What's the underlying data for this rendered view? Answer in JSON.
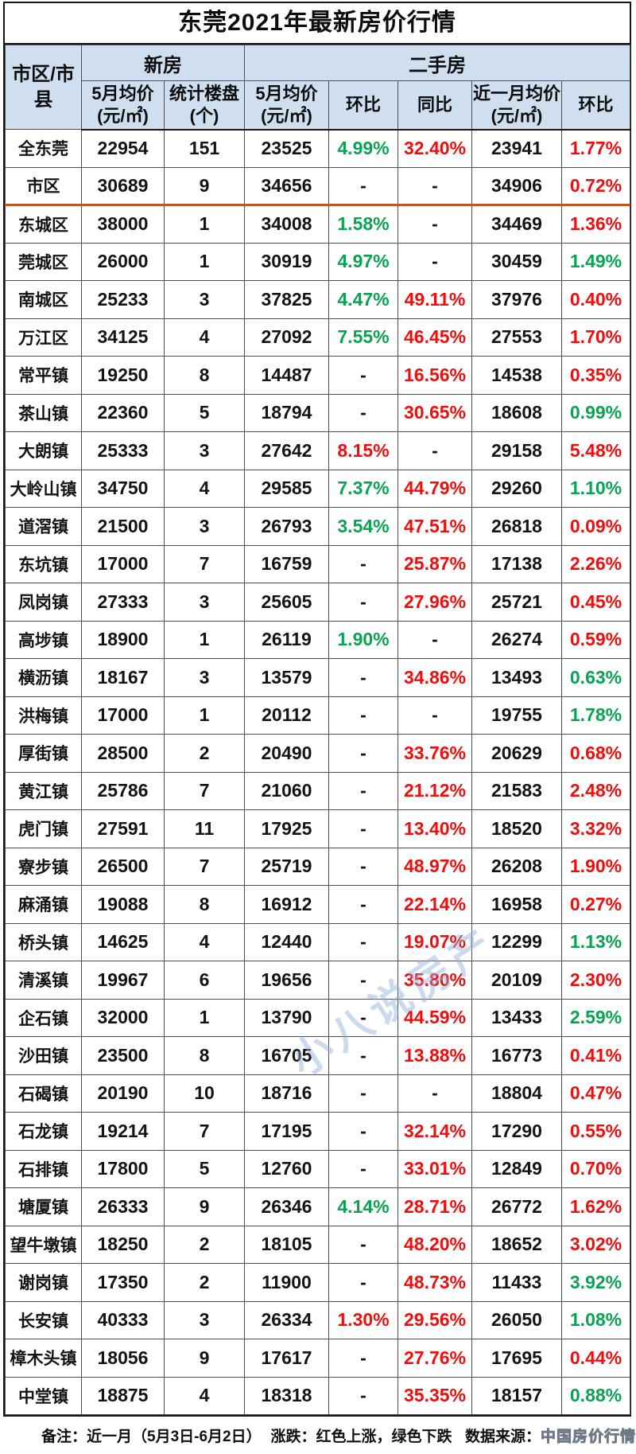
{
  "title": "东莞2021年最新房价行情",
  "colors": {
    "up_red": "#f20d0d",
    "down_green": "#09a352",
    "header_bg": "#cfdfef",
    "divider_orange": "#c3581f"
  },
  "table": {
    "corner_header": "市区/市县",
    "group_headers": [
      {
        "label": "新房",
        "colspan": 2
      },
      {
        "label": "二手房",
        "colspan": 5
      }
    ],
    "sub_headers": [
      "5月均价(元/㎡)",
      "统计楼盘(个)",
      "5月均价(元/㎡)",
      "环比",
      "同比",
      "近一月均价(元/㎡)",
      "环比"
    ],
    "divider_after_row_index": 1,
    "rows": [
      {
        "region": "全东莞",
        "new_avg": "22954",
        "listings": "151",
        "used_avg": "23525",
        "used_mom": "4.99%",
        "used_mom_color": "green",
        "used_yoy": "32.40%",
        "used_yoy_color": "red",
        "recent_avg": "23941",
        "recent_mom": "1.77%",
        "recent_mom_color": "red"
      },
      {
        "region": "市区",
        "new_avg": "30689",
        "listings": "9",
        "used_avg": "34656",
        "used_mom": "-",
        "used_mom_color": "",
        "used_yoy": "-",
        "used_yoy_color": "",
        "recent_avg": "34906",
        "recent_mom": "0.72%",
        "recent_mom_color": "red"
      },
      {
        "region": "东城区",
        "new_avg": "38000",
        "listings": "1",
        "used_avg": "34008",
        "used_mom": "1.58%",
        "used_mom_color": "green",
        "used_yoy": "-",
        "used_yoy_color": "",
        "recent_avg": "34469",
        "recent_mom": "1.36%",
        "recent_mom_color": "red"
      },
      {
        "region": "莞城区",
        "new_avg": "26000",
        "listings": "1",
        "used_avg": "30919",
        "used_mom": "4.97%",
        "used_mom_color": "green",
        "used_yoy": "-",
        "used_yoy_color": "",
        "recent_avg": "30459",
        "recent_mom": "1.49%",
        "recent_mom_color": "green"
      },
      {
        "region": "南城区",
        "new_avg": "25233",
        "listings": "3",
        "used_avg": "37825",
        "used_mom": "4.47%",
        "used_mom_color": "green",
        "used_yoy": "49.11%",
        "used_yoy_color": "red",
        "recent_avg": "37976",
        "recent_mom": "0.40%",
        "recent_mom_color": "red"
      },
      {
        "region": "万江区",
        "new_avg": "34125",
        "listings": "4",
        "used_avg": "27092",
        "used_mom": "7.55%",
        "used_mom_color": "green",
        "used_yoy": "46.45%",
        "used_yoy_color": "red",
        "recent_avg": "27553",
        "recent_mom": "1.70%",
        "recent_mom_color": "red"
      },
      {
        "region": "常平镇",
        "new_avg": "19250",
        "listings": "8",
        "used_avg": "14487",
        "used_mom": "-",
        "used_mom_color": "",
        "used_yoy": "16.56%",
        "used_yoy_color": "red",
        "recent_avg": "14538",
        "recent_mom": "0.35%",
        "recent_mom_color": "red"
      },
      {
        "region": "茶山镇",
        "new_avg": "22360",
        "listings": "5",
        "used_avg": "18794",
        "used_mom": "-",
        "used_mom_color": "",
        "used_yoy": "30.65%",
        "used_yoy_color": "red",
        "recent_avg": "18608",
        "recent_mom": "0.99%",
        "recent_mom_color": "green"
      },
      {
        "region": "大朗镇",
        "new_avg": "25333",
        "listings": "3",
        "used_avg": "27642",
        "used_mom": "8.15%",
        "used_mom_color": "red",
        "used_yoy": "-",
        "used_yoy_color": "",
        "recent_avg": "29158",
        "recent_mom": "5.48%",
        "recent_mom_color": "red"
      },
      {
        "region": "大岭山镇",
        "new_avg": "34750",
        "listings": "4",
        "used_avg": "29585",
        "used_mom": "7.37%",
        "used_mom_color": "green",
        "used_yoy": "44.79%",
        "used_yoy_color": "red",
        "recent_avg": "29260",
        "recent_mom": "1.10%",
        "recent_mom_color": "green"
      },
      {
        "region": "道滘镇",
        "new_avg": "21500",
        "listings": "3",
        "used_avg": "26793",
        "used_mom": "3.54%",
        "used_mom_color": "green",
        "used_yoy": "47.51%",
        "used_yoy_color": "red",
        "recent_avg": "26818",
        "recent_mom": "0.09%",
        "recent_mom_color": "red"
      },
      {
        "region": "东坑镇",
        "new_avg": "17000",
        "listings": "7",
        "used_avg": "16759",
        "used_mom": "-",
        "used_mom_color": "",
        "used_yoy": "25.87%",
        "used_yoy_color": "red",
        "recent_avg": "17138",
        "recent_mom": "2.26%",
        "recent_mom_color": "red"
      },
      {
        "region": "凤岗镇",
        "new_avg": "27333",
        "listings": "3",
        "used_avg": "25605",
        "used_mom": "-",
        "used_mom_color": "",
        "used_yoy": "27.96%",
        "used_yoy_color": "red",
        "recent_avg": "25721",
        "recent_mom": "0.45%",
        "recent_mom_color": "red"
      },
      {
        "region": "高埗镇",
        "new_avg": "18900",
        "listings": "1",
        "used_avg": "26119",
        "used_mom": "1.90%",
        "used_mom_color": "green",
        "used_yoy": "-",
        "used_yoy_color": "",
        "recent_avg": "26274",
        "recent_mom": "0.59%",
        "recent_mom_color": "red"
      },
      {
        "region": "横沥镇",
        "new_avg": "18167",
        "listings": "3",
        "used_avg": "13579",
        "used_mom": "-",
        "used_mom_color": "",
        "used_yoy": "34.86%",
        "used_yoy_color": "red",
        "recent_avg": "13493",
        "recent_mom": "0.63%",
        "recent_mom_color": "green"
      },
      {
        "region": "洪梅镇",
        "new_avg": "17000",
        "listings": "1",
        "used_avg": "20112",
        "used_mom": "-",
        "used_mom_color": "",
        "used_yoy": "-",
        "used_yoy_color": "",
        "recent_avg": "19755",
        "recent_mom": "1.78%",
        "recent_mom_color": "green"
      },
      {
        "region": "厚街镇",
        "new_avg": "28500",
        "listings": "2",
        "used_avg": "20490",
        "used_mom": "-",
        "used_mom_color": "",
        "used_yoy": "33.76%",
        "used_yoy_color": "red",
        "recent_avg": "20629",
        "recent_mom": "0.68%",
        "recent_mom_color": "red"
      },
      {
        "region": "黄江镇",
        "new_avg": "25786",
        "listings": "7",
        "used_avg": "21060",
        "used_mom": "-",
        "used_mom_color": "",
        "used_yoy": "21.12%",
        "used_yoy_color": "red",
        "recent_avg": "21583",
        "recent_mom": "2.48%",
        "recent_mom_color": "red"
      },
      {
        "region": "虎门镇",
        "new_avg": "27591",
        "listings": "11",
        "used_avg": "17925",
        "used_mom": "-",
        "used_mom_color": "",
        "used_yoy": "13.40%",
        "used_yoy_color": "red",
        "recent_avg": "18520",
        "recent_mom": "3.32%",
        "recent_mom_color": "red"
      },
      {
        "region": "寮步镇",
        "new_avg": "26500",
        "listings": "7",
        "used_avg": "25719",
        "used_mom": "-",
        "used_mom_color": "",
        "used_yoy": "48.97%",
        "used_yoy_color": "red",
        "recent_avg": "26208",
        "recent_mom": "1.90%",
        "recent_mom_color": "red"
      },
      {
        "region": "麻涌镇",
        "new_avg": "19088",
        "listings": "8",
        "used_avg": "16912",
        "used_mom": "-",
        "used_mom_color": "",
        "used_yoy": "22.14%",
        "used_yoy_color": "red",
        "recent_avg": "16958",
        "recent_mom": "0.27%",
        "recent_mom_color": "red"
      },
      {
        "region": "桥头镇",
        "new_avg": "14625",
        "listings": "4",
        "used_avg": "12440",
        "used_mom": "-",
        "used_mom_color": "",
        "used_yoy": "19.07%",
        "used_yoy_color": "red",
        "recent_avg": "12299",
        "recent_mom": "1.13%",
        "recent_mom_color": "green"
      },
      {
        "region": "清溪镇",
        "new_avg": "19967",
        "listings": "6",
        "used_avg": "19656",
        "used_mom": "-",
        "used_mom_color": "",
        "used_yoy": "35.80%",
        "used_yoy_color": "red",
        "recent_avg": "20109",
        "recent_mom": "2.30%",
        "recent_mom_color": "red"
      },
      {
        "region": "企石镇",
        "new_avg": "32000",
        "listings": "1",
        "used_avg": "13790",
        "used_mom": "-",
        "used_mom_color": "",
        "used_yoy": "44.59%",
        "used_yoy_color": "red",
        "recent_avg": "13433",
        "recent_mom": "2.59%",
        "recent_mom_color": "green"
      },
      {
        "region": "沙田镇",
        "new_avg": "23500",
        "listings": "8",
        "used_avg": "16705",
        "used_mom": "-",
        "used_mom_color": "",
        "used_yoy": "13.88%",
        "used_yoy_color": "red",
        "recent_avg": "16773",
        "recent_mom": "0.41%",
        "recent_mom_color": "red"
      },
      {
        "region": "石碣镇",
        "new_avg": "20190",
        "listings": "10",
        "used_avg": "18716",
        "used_mom": "-",
        "used_mom_color": "",
        "used_yoy": "-",
        "used_yoy_color": "",
        "recent_avg": "18804",
        "recent_mom": "0.47%",
        "recent_mom_color": "red"
      },
      {
        "region": "石龙镇",
        "new_avg": "19214",
        "listings": "7",
        "used_avg": "17195",
        "used_mom": "-",
        "used_mom_color": "",
        "used_yoy": "32.14%",
        "used_yoy_color": "red",
        "recent_avg": "17290",
        "recent_mom": "0.55%",
        "recent_mom_color": "red"
      },
      {
        "region": "石排镇",
        "new_avg": "17800",
        "listings": "5",
        "used_avg": "12760",
        "used_mom": "-",
        "used_mom_color": "",
        "used_yoy": "33.01%",
        "used_yoy_color": "red",
        "recent_avg": "12849",
        "recent_mom": "0.70%",
        "recent_mom_color": "red"
      },
      {
        "region": "塘厦镇",
        "new_avg": "26333",
        "listings": "9",
        "used_avg": "26346",
        "used_mom": "4.14%",
        "used_mom_color": "green",
        "used_yoy": "28.71%",
        "used_yoy_color": "red",
        "recent_avg": "26772",
        "recent_mom": "1.62%",
        "recent_mom_color": "red"
      },
      {
        "region": "望牛墩镇",
        "new_avg": "18250",
        "listings": "2",
        "used_avg": "18105",
        "used_mom": "-",
        "used_mom_color": "",
        "used_yoy": "48.20%",
        "used_yoy_color": "red",
        "recent_avg": "18652",
        "recent_mom": "3.02%",
        "recent_mom_color": "red"
      },
      {
        "region": "谢岗镇",
        "new_avg": "17350",
        "listings": "2",
        "used_avg": "11900",
        "used_mom": "-",
        "used_mom_color": "",
        "used_yoy": "48.73%",
        "used_yoy_color": "red",
        "recent_avg": "11433",
        "recent_mom": "3.92%",
        "recent_mom_color": "green"
      },
      {
        "region": "长安镇",
        "new_avg": "40333",
        "listings": "3",
        "used_avg": "26334",
        "used_mom": "1.30%",
        "used_mom_color": "red",
        "used_yoy": "29.56%",
        "used_yoy_color": "red",
        "recent_avg": "26050",
        "recent_mom": "1.08%",
        "recent_mom_color": "green"
      },
      {
        "region": "樟木头镇",
        "new_avg": "18056",
        "listings": "9",
        "used_avg": "17617",
        "used_mom": "-",
        "used_mom_color": "",
        "used_yoy": "27.76%",
        "used_yoy_color": "red",
        "recent_avg": "17695",
        "recent_mom": "0.44%",
        "recent_mom_color": "red"
      },
      {
        "region": "中堂镇",
        "new_avg": "18875",
        "listings": "4",
        "used_avg": "18318",
        "used_mom": "-",
        "used_mom_color": "",
        "used_yoy": "35.35%",
        "used_yoy_color": "red",
        "recent_avg": "18157",
        "recent_mom": "0.88%",
        "recent_mom_color": "green"
      }
    ]
  },
  "footer": {
    "note_label": "备注：",
    "note_text": "近一月（5月3日-6月2日）",
    "change_label": "涨跌：",
    "change_text": "红色上涨，绿色下跌",
    "source_label": "数据来源：",
    "source_text": "中国房价行情"
  },
  "watermark_text": "小八说房产"
}
